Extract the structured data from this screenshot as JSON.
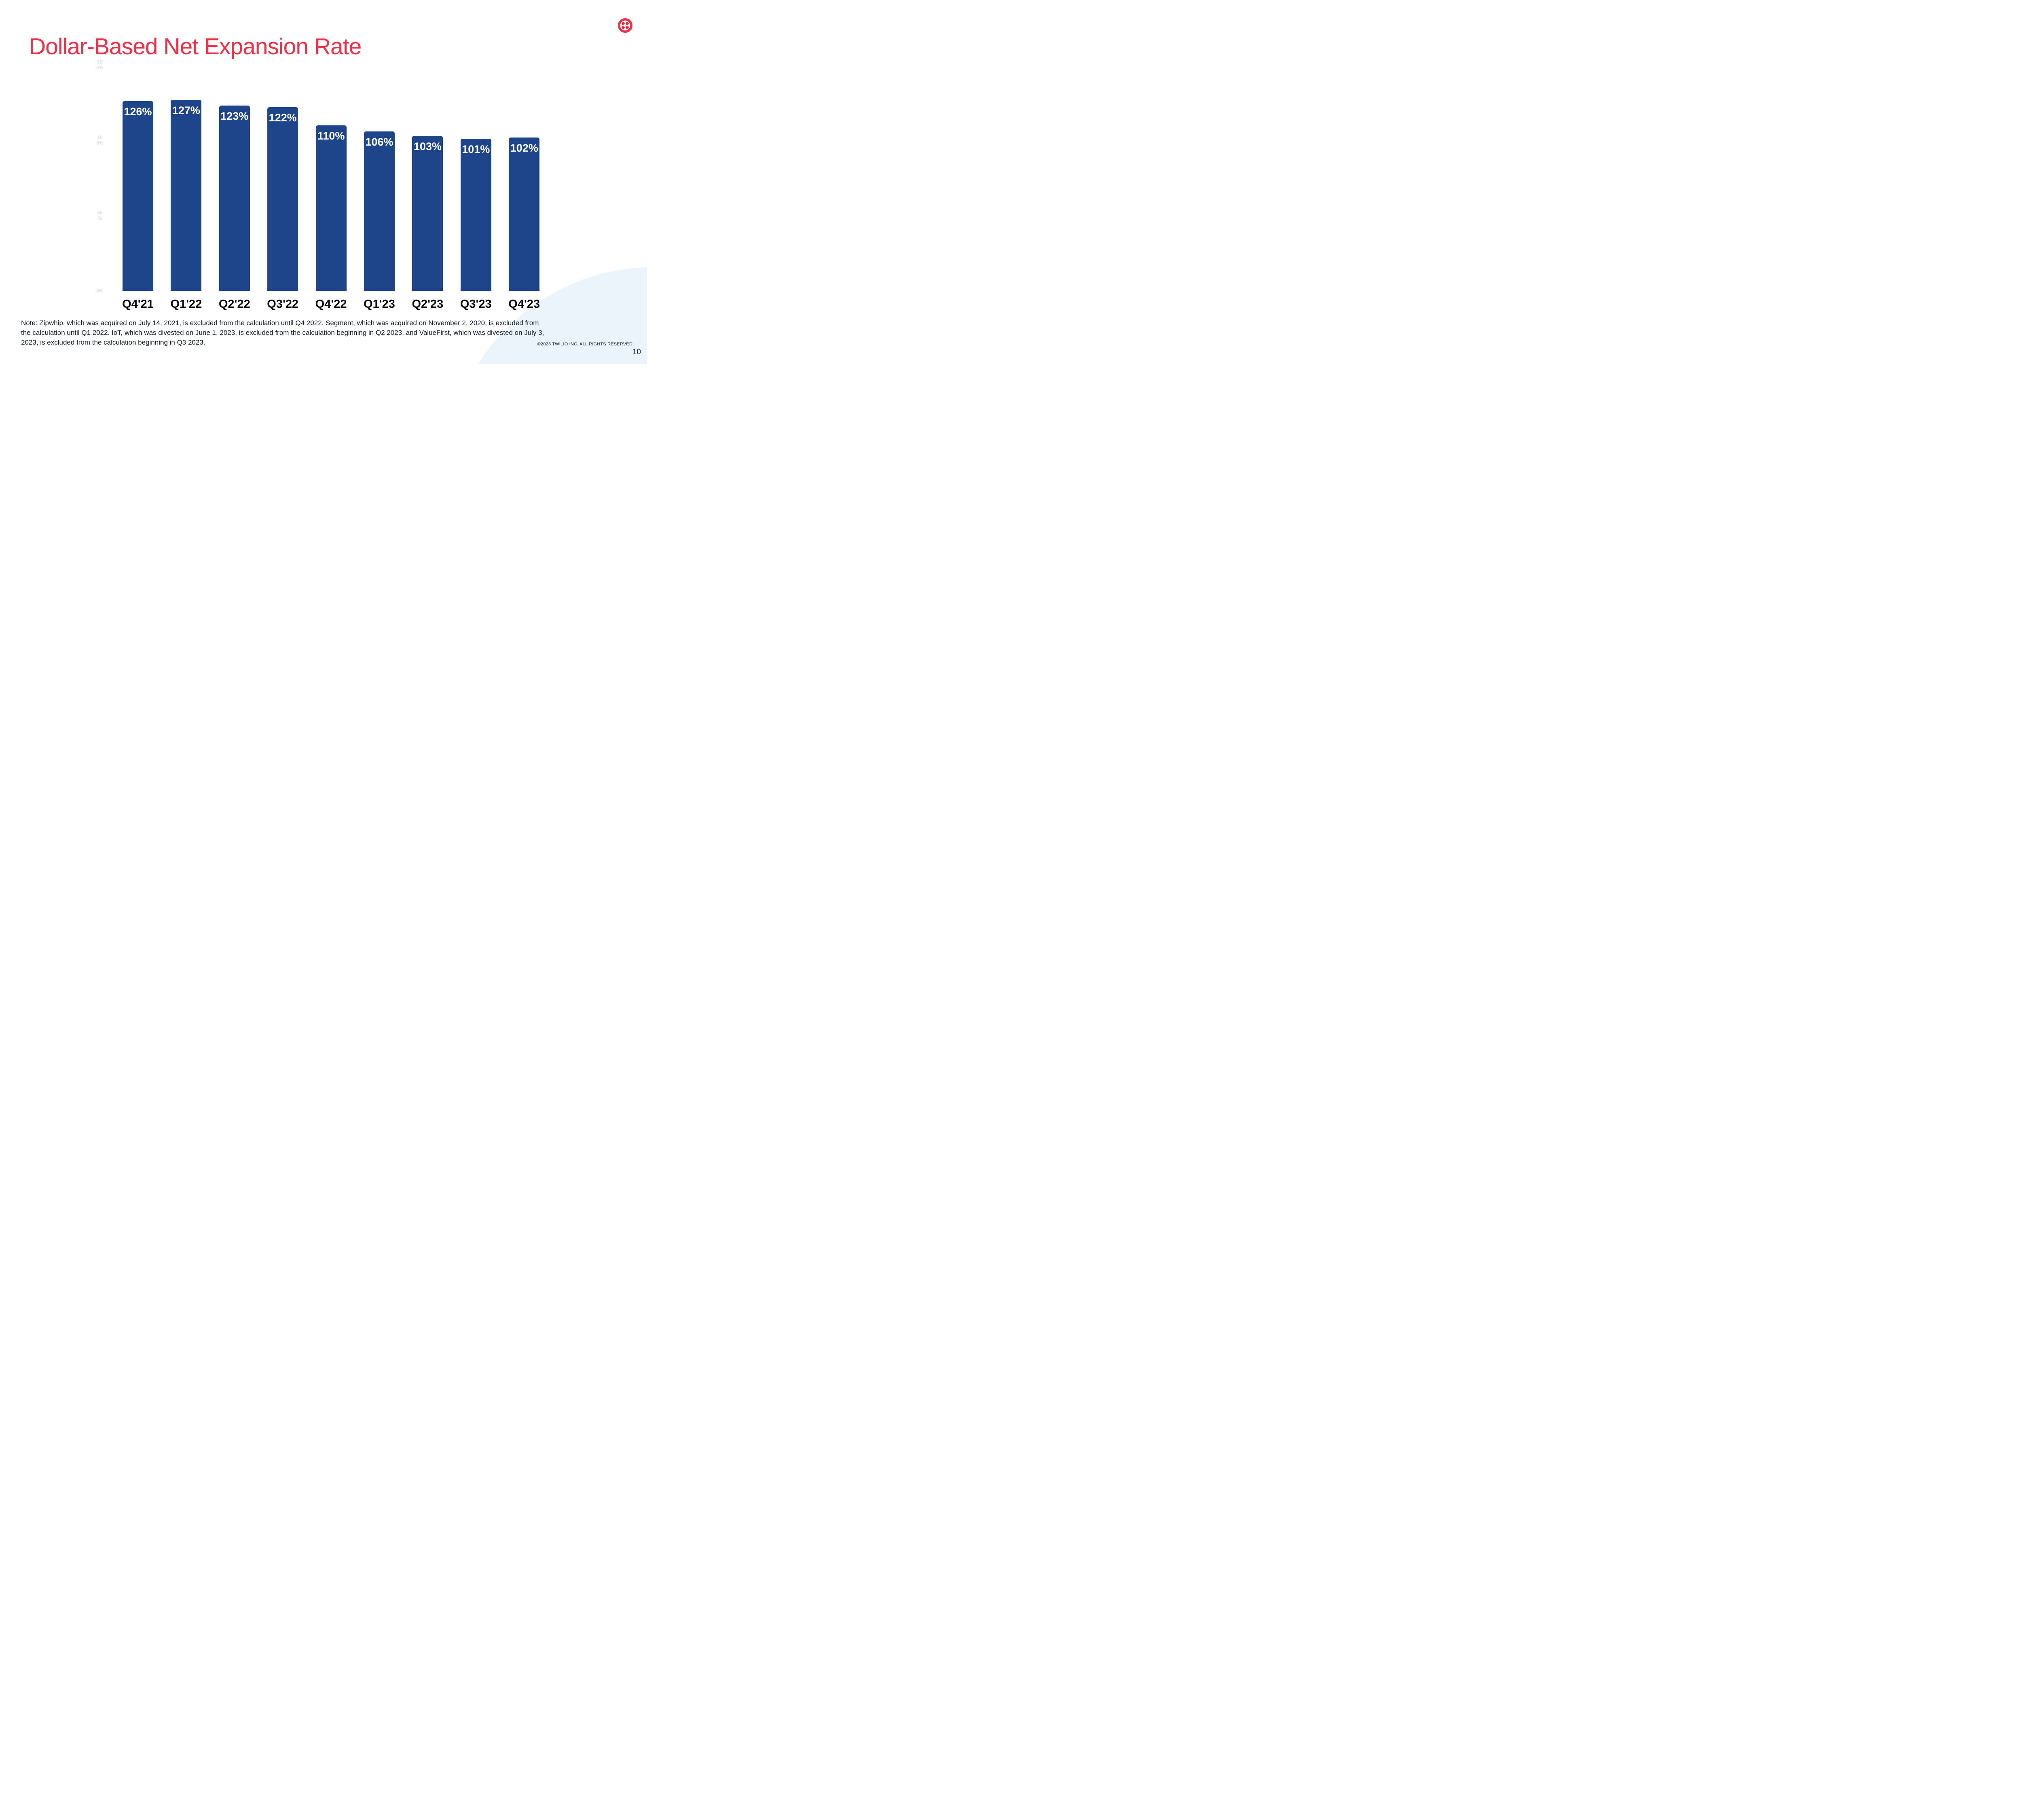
{
  "slide": {
    "title": "Dollar-Based Net Expansion Rate",
    "page_number": "10",
    "footer": "©2023 TWILIO INC. ALL RIGHTS RESERVED",
    "note_lines": [
      "Note: Zipwhip, which was acquired on July 14, 2021, is excluded from the calculation until Q4 2022. Segment, which was acquired on November 2, 2020, is excluded from",
      "the calculation until Q1 2022. IoT, which was divested on June 1, 2023, is excluded from the calculation beginning in Q2 2023, and ValueFirst, which was divested on July 3,",
      "2023, is excluded from the calculation beginning in Q3 2023."
    ]
  },
  "brand": {
    "logo_name": "twilio-logo",
    "red": "#F22F46",
    "ink": "#121C2D",
    "black": "#0B0B0B",
    "bar_blue": "#1E4489",
    "bar_label_white": "#FFFFFF",
    "axis_label_gray": "#E0E0E0",
    "corner_circle_blue": "#EBF4FB"
  },
  "chart_data": {
    "type": "bar",
    "title": "Dollar-Based Net Expansion Rate",
    "categories": [
      "Q4'21",
      "Q1'22",
      "Q2'22",
      "Q3'22",
      "Q4'22",
      "Q1'23",
      "Q2'23",
      "Q3'23",
      "Q4'23"
    ],
    "values": [
      126,
      127,
      123,
      122,
      110,
      106,
      103,
      101,
      102
    ],
    "bar_labels": [
      "126%",
      "127%",
      "123%",
      "122%",
      "110%",
      "106%",
      "103%",
      "101%",
      "102%"
    ],
    "xlabel": "",
    "ylabel": "",
    "ylim": [
      0,
      150
    ],
    "yticks": [
      {
        "value": 150,
        "lines": [
          "15",
          "0%"
        ]
      },
      {
        "value": 100,
        "lines": [
          "10",
          "0%"
        ]
      },
      {
        "value": 50,
        "lines": [
          "50",
          "%"
        ]
      },
      {
        "value": 0,
        "lines": [
          "0%"
        ]
      }
    ],
    "grid": false,
    "legend": "none"
  }
}
